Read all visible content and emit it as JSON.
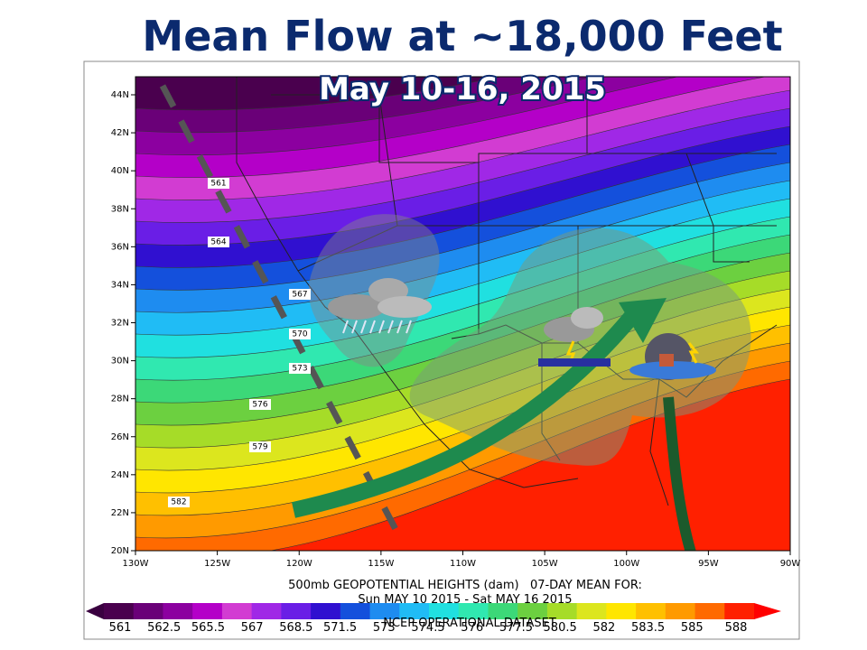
{
  "title": "Mean Flow at ~18,000 Feet",
  "subtitle": "May 10-16, 2015",
  "map": {
    "lat_labels": [
      "20N",
      "22N",
      "24N",
      "26N",
      "28N",
      "30N",
      "32N",
      "34N",
      "36N",
      "38N",
      "40N",
      "42N",
      "44N"
    ],
    "lon_labels": [
      "130W",
      "125W",
      "120W",
      "115W",
      "110W",
      "105W",
      "100W",
      "95W",
      "90W"
    ],
    "contour_labels": [
      "561",
      "564",
      "567",
      "570",
      "573",
      "576",
      "579",
      "582"
    ]
  },
  "caption": {
    "line1": "500mb GEOPOTENTIAL HEIGHTS (dam)   07-DAY MEAN FOR:",
    "line2": "Sun MAY 10 2015 - Sat MAY 16 2015",
    "source": "NCEP OPERATIONAL DATASET"
  },
  "colorbar": {
    "labels": [
      "561",
      "562.5",
      "565.5",
      "567",
      "568.5",
      "571.5",
      "573",
      "574.5",
      "576",
      "577.5",
      "580.5",
      "582",
      "583.5",
      "585",
      "588"
    ]
  }
}
